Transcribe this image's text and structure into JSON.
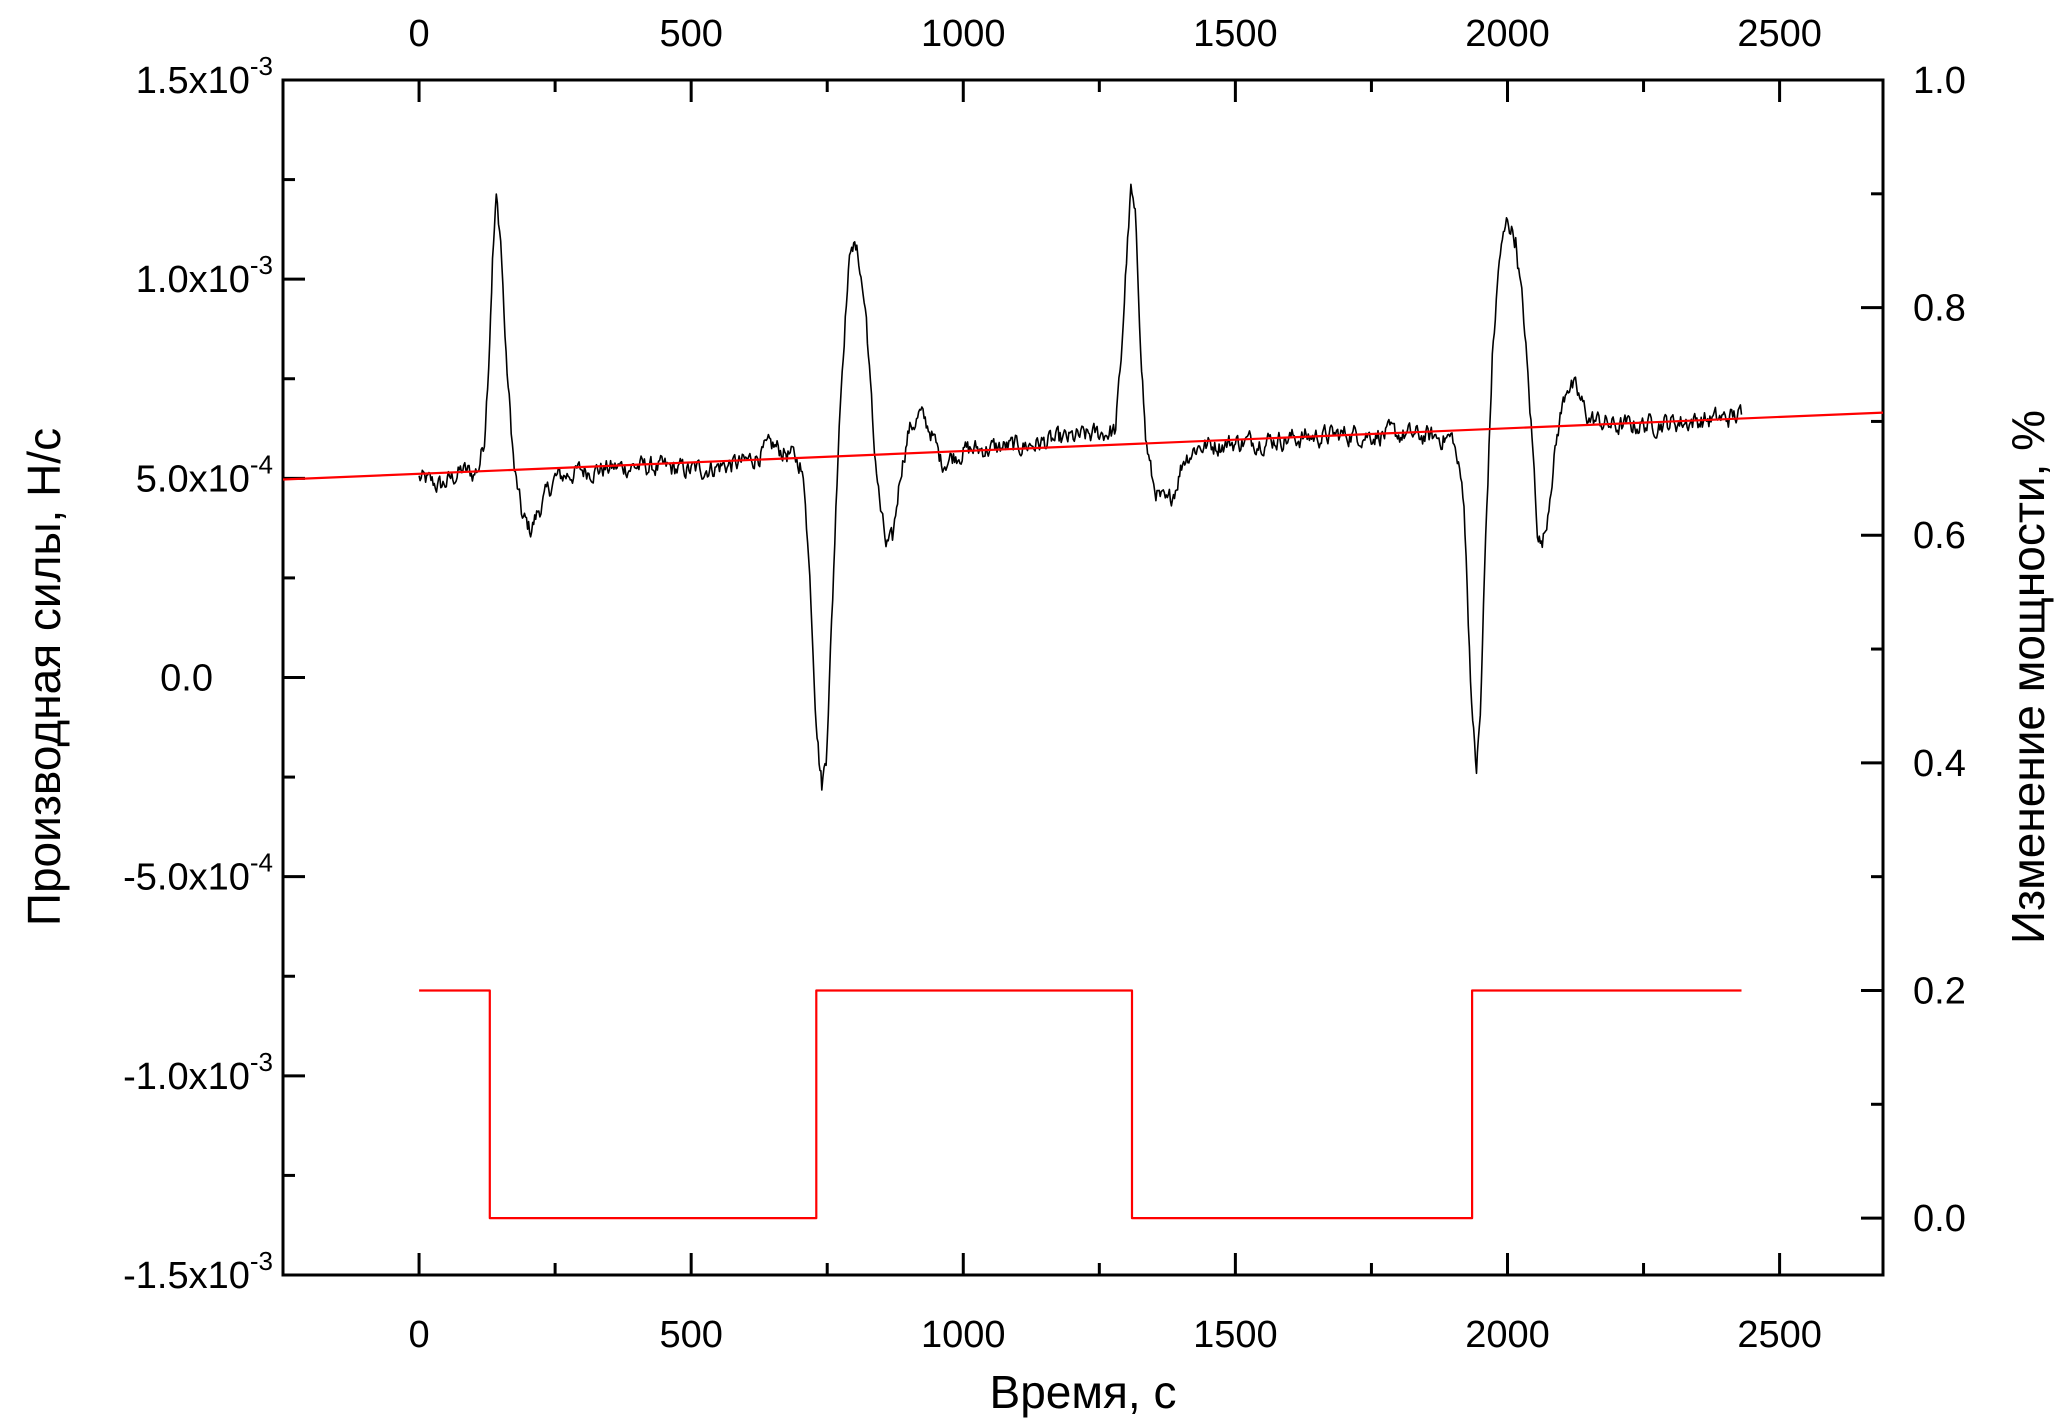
{
  "chart_data": {
    "type": "line",
    "xlabel": "Время, с",
    "ylabel_left": "Производная силы, Н/с",
    "ylabel_right": "Изменение мощности, %",
    "xlim": [
      -250,
      2690
    ],
    "ylim_left": [
      -0.0015,
      0.0015
    ],
    "ylim_right": [
      -0.05,
      1.0
    ],
    "grid": false,
    "colors": {
      "signal": "#000000",
      "trend": "#ff0000",
      "power": "#ff0000",
      "axes": "#000000"
    },
    "x_ticks": [
      0,
      500,
      1000,
      1500,
      2000,
      2500
    ],
    "x_tick_labels": [
      "0",
      "500",
      "1000",
      "1500",
      "2000",
      "2500"
    ],
    "left_ticks": [
      {
        "value": 0.0015,
        "mantissa": "1.5x10",
        "exp": "-3"
      },
      {
        "value": 0.001,
        "mantissa": "1.0x10",
        "exp": "-3"
      },
      {
        "value": 0.0005,
        "mantissa": "5.0x10",
        "exp": "-4"
      },
      {
        "value": 0.0,
        "mantissa": "0.0",
        "exp": ""
      },
      {
        "value": -0.0005,
        "mantissa": "-5.0x10",
        "exp": "-4"
      },
      {
        "value": -0.001,
        "mantissa": "-1.0x10",
        "exp": "-3"
      },
      {
        "value": -0.0015,
        "mantissa": "-1.5x10",
        "exp": "-3"
      }
    ],
    "right_ticks": [
      0.0,
      0.2,
      0.4,
      0.6,
      0.8,
      1.0
    ],
    "right_tick_labels": [
      "0.0",
      "0.2",
      "0.4",
      "0.6",
      "0.8",
      "1.0"
    ],
    "series": [
      {
        "axis": "left",
        "style": "noisy",
        "noise": 3e-05,
        "x": [
          0,
          20,
          40,
          60,
          80,
          100,
          110,
          120,
          128,
          135,
          142,
          150,
          160,
          175,
          190,
          205,
          220,
          250,
          300,
          400,
          500,
          600,
          650,
          680,
          700,
          710,
          720,
          728,
          735,
          740,
          748,
          760,
          772,
          785,
          795,
          808,
          822,
          835,
          848,
          858,
          870,
          885,
          900,
          920,
          940,
          960,
          1000,
          1100,
          1200,
          1280,
          1290,
          1300,
          1308,
          1316,
          1324,
          1335,
          1348,
          1360,
          1375,
          1390,
          1405,
          1430,
          1500,
          1600,
          1700,
          1800,
          1900,
          1920,
          1928,
          1936,
          1943,
          1950,
          1960,
          1972,
          1985,
          2000,
          2015,
          2030,
          2045,
          2055,
          2062,
          2070,
          2080,
          2095,
          2110,
          2125,
          2150,
          2200,
          2300,
          2400,
          2430
        ],
        "y": [
          0.0005,
          0.00049,
          0.00048,
          0.0005,
          0.00052,
          0.00051,
          0.00053,
          0.0006,
          0.0008,
          0.00105,
          0.0012,
          0.0011,
          0.0008,
          0.00052,
          0.0004,
          0.00037,
          0.00042,
          0.0005,
          0.00052,
          0.00053,
          0.00052,
          0.00054,
          0.00058,
          0.00056,
          0.00054,
          0.00045,
          0.0002,
          -5e-05,
          -0.0002,
          -0.00027,
          -0.0002,
          0.0002,
          0.00065,
          0.00095,
          0.0011,
          0.00105,
          0.0009,
          0.0006,
          0.00042,
          0.00033,
          0.00034,
          0.00052,
          0.00062,
          0.00066,
          0.00062,
          0.00054,
          0.00057,
          0.00058,
          0.0006,
          0.00062,
          0.0008,
          0.00105,
          0.00122,
          0.00115,
          0.0009,
          0.0006,
          0.00049,
          0.00045,
          0.00043,
          0.00048,
          0.00055,
          0.00058,
          0.00059,
          0.0006,
          0.00061,
          0.00061,
          0.0006,
          0.00045,
          0.00015,
          -0.00012,
          -0.00023,
          -0.0001,
          0.00035,
          0.0008,
          0.00105,
          0.00115,
          0.0011,
          0.0009,
          0.0006,
          0.00038,
          0.00033,
          0.00037,
          0.00049,
          0.00064,
          0.00074,
          0.00072,
          0.00065,
          0.00063,
          0.00064,
          0.00065,
          0.00066
        ]
      },
      {
        "axis": "left",
        "style": "line",
        "x": [
          -250,
          2690
        ],
        "y": [
          0.000497,
          0.000665
        ]
      },
      {
        "axis": "right",
        "style": "step",
        "x": [
          0,
          130,
          130,
          730,
          730,
          1310,
          1310,
          1935,
          1935,
          2430
        ],
        "y": [
          0.2,
          0.2,
          0.0,
          0.0,
          0.2,
          0.2,
          0.0,
          0.0,
          0.2,
          0.2
        ]
      }
    ]
  }
}
